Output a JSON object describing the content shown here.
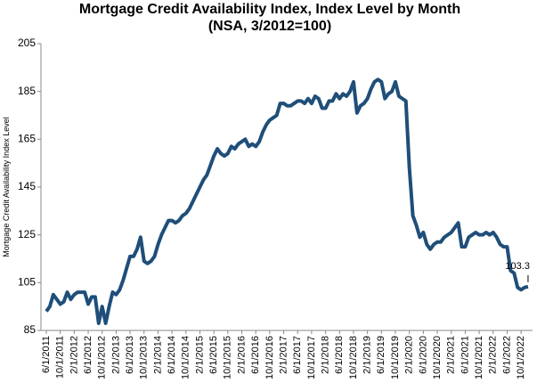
{
  "chart_data": {
    "type": "line",
    "title": "Mortgage Credit Availability Index, Index Level by Month",
    "subtitle": "(NSA, 3/2012=100)",
    "y_label": "Mortgage Credit Availability Index Level",
    "categories": [
      "6/1/2011",
      null,
      null,
      null,
      "10/1/2011",
      null,
      null,
      null,
      "2/1/2012",
      null,
      null,
      null,
      "6/1/2012",
      null,
      null,
      null,
      "10/1/2012",
      null,
      null,
      null,
      "2/1/2013",
      null,
      null,
      null,
      "6/1/2013",
      null,
      null,
      null,
      "10/1/2013",
      null,
      null,
      null,
      "2/1/2014",
      null,
      null,
      null,
      "6/1/2014",
      null,
      null,
      null,
      "10/1/2014",
      null,
      null,
      null,
      "2/1/2015",
      null,
      null,
      null,
      "6/1/2015",
      null,
      null,
      null,
      "10/1/2015",
      null,
      null,
      null,
      "2/1/2016",
      null,
      null,
      null,
      "6/1/2016",
      null,
      null,
      null,
      "10/1/2016",
      null,
      null,
      null,
      "2/1/2017",
      null,
      null,
      null,
      "6/1/2017",
      null,
      null,
      null,
      "10/1/2017",
      null,
      null,
      null,
      "2/1/2018",
      null,
      null,
      null,
      "6/1/2018",
      null,
      null,
      null,
      "10/1/2018",
      null,
      null,
      null,
      "2/1/2019",
      null,
      null,
      null,
      "6/1/2019",
      null,
      null,
      null,
      "10/1/2019",
      null,
      null,
      null,
      "2/1/2020",
      null,
      null,
      null,
      "6/1/2020",
      null,
      null,
      null,
      "10/1/2020",
      null,
      null,
      null,
      "2/1/2021",
      null,
      null,
      null,
      "6/1/2021",
      null,
      null,
      null,
      "10/1/2021",
      null,
      null,
      null,
      "2/1/2022",
      null,
      null,
      null,
      "6/1/2022",
      null,
      null,
      null,
      "10/1/2022",
      null,
      null
    ],
    "series": [
      {
        "name": "Mortgage Credit Availability Index",
        "color": "#1f4e79",
        "values": [
          93,
          95,
          100,
          98,
          96,
          97,
          101,
          98,
          100,
          101,
          101,
          101,
          96,
          99,
          99,
          88,
          95,
          88,
          95,
          101,
          100,
          102,
          106,
          111,
          116,
          116,
          119,
          124,
          114,
          113,
          114,
          116,
          121,
          125,
          128,
          131,
          131,
          130,
          131,
          133,
          134,
          136,
          139,
          142,
          145,
          148,
          150,
          154,
          158,
          161,
          159,
          158,
          159,
          162,
          161,
          163,
          164,
          165,
          162,
          163,
          162,
          164,
          168,
          171,
          173,
          174,
          175,
          180,
          180,
          179,
          179,
          180,
          181,
          181,
          180,
          182,
          180,
          183,
          182,
          178,
          178,
          181,
          181,
          184,
          182,
          184,
          183,
          185,
          189,
          176,
          179,
          180,
          182,
          186,
          189,
          190,
          189,
          182,
          184,
          185,
          189,
          183,
          182,
          181,
          153,
          133,
          129,
          124,
          126,
          121,
          119,
          121,
          122,
          122,
          124,
          125,
          126,
          128,
          130,
          120,
          120,
          124,
          125,
          126,
          125,
          125,
          126,
          125,
          126,
          124,
          121,
          120,
          120,
          110,
          109,
          103,
          102,
          103,
          103.3
        ]
      }
    ],
    "ylim": [
      85,
      205
    ],
    "yticks": [
      85,
      105,
      125,
      145,
      165,
      185,
      205
    ],
    "grid": false
  }
}
